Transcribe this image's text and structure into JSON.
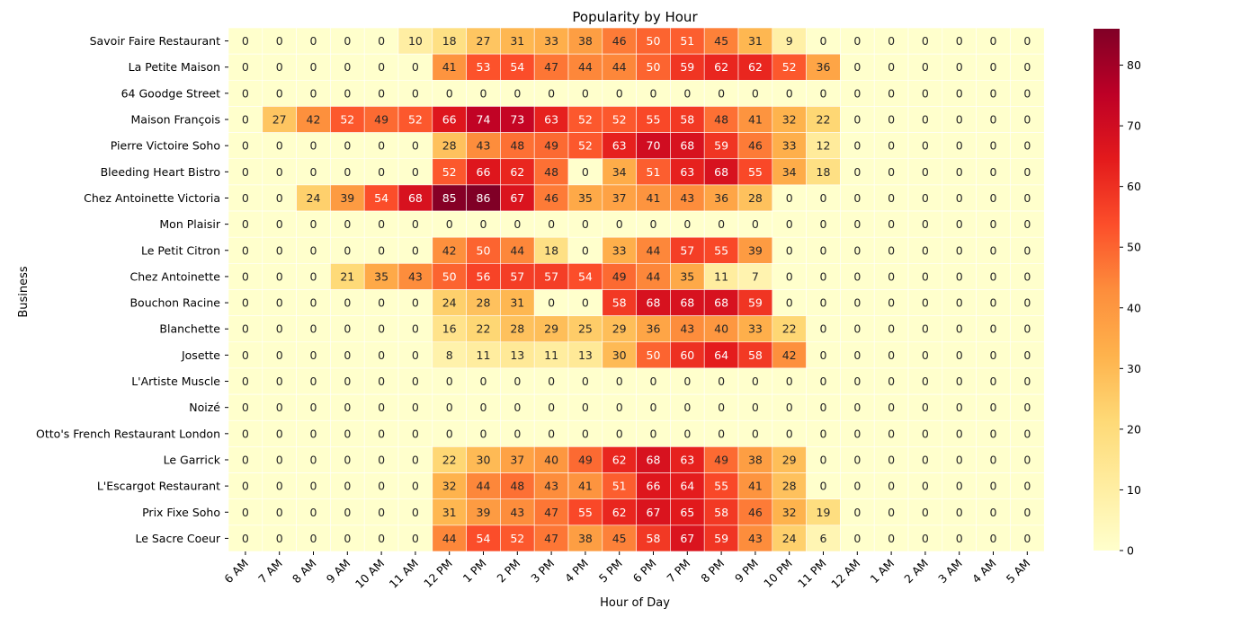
{
  "chart_data": {
    "type": "heatmap",
    "title": "Popularity by Hour",
    "xlabel": "Hour of Day",
    "ylabel": "Business",
    "x": [
      "6 AM",
      "7 AM",
      "8 AM",
      "9 AM",
      "10 AM",
      "11 AM",
      "12 PM",
      "1 PM",
      "2 PM",
      "3 PM",
      "4 PM",
      "5 PM",
      "6 PM",
      "7 PM",
      "8 PM",
      "9 PM",
      "10 PM",
      "11 PM",
      "12 AM",
      "1 AM",
      "2 AM",
      "3 AM",
      "4 AM",
      "5 AM"
    ],
    "y": [
      "Savoir Faire Restaurant",
      "La Petite Maison",
      "64 Goodge Street",
      "Maison François",
      "Pierre Victoire Soho",
      "Bleeding Heart Bistro",
      "Chez Antoinette Victoria",
      "Mon Plaisir",
      "Le Petit Citron",
      "Chez Antoinette",
      "Bouchon Racine",
      "Blanchette",
      "Josette",
      "L'Artiste Muscle",
      "Noizé",
      "Otto's French Restaurant London",
      "Le Garrick",
      "L'Escargot Restaurant",
      "Prix Fixe Soho",
      "Le Sacre Coeur"
    ],
    "values": [
      [
        0,
        0,
        0,
        0,
        0,
        10,
        18,
        27,
        31,
        33,
        38,
        46,
        50,
        51,
        45,
        31,
        9,
        0,
        0,
        0,
        0,
        0,
        0,
        0
      ],
      [
        0,
        0,
        0,
        0,
        0,
        0,
        41,
        53,
        54,
        47,
        44,
        44,
        50,
        59,
        62,
        62,
        52,
        36,
        0,
        0,
        0,
        0,
        0,
        0
      ],
      [
        0,
        0,
        0,
        0,
        0,
        0,
        0,
        0,
        0,
        0,
        0,
        0,
        0,
        0,
        0,
        0,
        0,
        0,
        0,
        0,
        0,
        0,
        0,
        0
      ],
      [
        0,
        27,
        42,
        52,
        49,
        52,
        66,
        74,
        73,
        63,
        52,
        52,
        55,
        58,
        48,
        41,
        32,
        22,
        0,
        0,
        0,
        0,
        0,
        0
      ],
      [
        0,
        0,
        0,
        0,
        0,
        0,
        28,
        43,
        48,
        49,
        52,
        63,
        70,
        68,
        59,
        46,
        33,
        12,
        0,
        0,
        0,
        0,
        0,
        0
      ],
      [
        0,
        0,
        0,
        0,
        0,
        0,
        52,
        66,
        62,
        48,
        0,
        34,
        51,
        63,
        68,
        55,
        34,
        18,
        0,
        0,
        0,
        0,
        0,
        0
      ],
      [
        0,
        0,
        24,
        39,
        54,
        68,
        85,
        86,
        67,
        46,
        35,
        37,
        41,
        43,
        36,
        28,
        0,
        0,
        0,
        0,
        0,
        0,
        0,
        0
      ],
      [
        0,
        0,
        0,
        0,
        0,
        0,
        0,
        0,
        0,
        0,
        0,
        0,
        0,
        0,
        0,
        0,
        0,
        0,
        0,
        0,
        0,
        0,
        0,
        0
      ],
      [
        0,
        0,
        0,
        0,
        0,
        0,
        42,
        50,
        44,
        18,
        0,
        33,
        44,
        57,
        55,
        39,
        0,
        0,
        0,
        0,
        0,
        0,
        0,
        0
      ],
      [
        0,
        0,
        0,
        21,
        35,
        43,
        50,
        56,
        57,
        57,
        54,
        49,
        44,
        35,
        11,
        7,
        0,
        0,
        0,
        0,
        0,
        0,
        0,
        0
      ],
      [
        0,
        0,
        0,
        0,
        0,
        0,
        24,
        28,
        31,
        0,
        0,
        58,
        68,
        68,
        68,
        59,
        0,
        0,
        0,
        0,
        0,
        0,
        0,
        0
      ],
      [
        0,
        0,
        0,
        0,
        0,
        0,
        16,
        22,
        28,
        29,
        25,
        29,
        36,
        43,
        40,
        33,
        22,
        0,
        0,
        0,
        0,
        0,
        0,
        0
      ],
      [
        0,
        0,
        0,
        0,
        0,
        0,
        8,
        11,
        13,
        11,
        13,
        30,
        50,
        60,
        64,
        58,
        42,
        0,
        0,
        0,
        0,
        0,
        0,
        0
      ],
      [
        0,
        0,
        0,
        0,
        0,
        0,
        0,
        0,
        0,
        0,
        0,
        0,
        0,
        0,
        0,
        0,
        0,
        0,
        0,
        0,
        0,
        0,
        0,
        0
      ],
      [
        0,
        0,
        0,
        0,
        0,
        0,
        0,
        0,
        0,
        0,
        0,
        0,
        0,
        0,
        0,
        0,
        0,
        0,
        0,
        0,
        0,
        0,
        0,
        0
      ],
      [
        0,
        0,
        0,
        0,
        0,
        0,
        0,
        0,
        0,
        0,
        0,
        0,
        0,
        0,
        0,
        0,
        0,
        0,
        0,
        0,
        0,
        0,
        0,
        0
      ],
      [
        0,
        0,
        0,
        0,
        0,
        0,
        22,
        30,
        37,
        40,
        49,
        62,
        68,
        63,
        49,
        38,
        29,
        0,
        0,
        0,
        0,
        0,
        0,
        0
      ],
      [
        0,
        0,
        0,
        0,
        0,
        0,
        32,
        44,
        48,
        43,
        41,
        51,
        66,
        64,
        55,
        41,
        28,
        0,
        0,
        0,
        0,
        0,
        0,
        0
      ],
      [
        0,
        0,
        0,
        0,
        0,
        0,
        31,
        39,
        43,
        47,
        55,
        62,
        67,
        65,
        58,
        46,
        32,
        19,
        0,
        0,
        0,
        0,
        0,
        0
      ],
      [
        0,
        0,
        0,
        0,
        0,
        0,
        44,
        54,
        52,
        47,
        38,
        45,
        58,
        67,
        59,
        43,
        24,
        6,
        0,
        0,
        0,
        0,
        0,
        0
      ]
    ],
    "colorbar": {
      "min": 0,
      "max": 86,
      "ticks": [
        0,
        10,
        20,
        30,
        40,
        50,
        60,
        70,
        80
      ],
      "colormap": "YlOrRd"
    },
    "annotated": true,
    "grid": false,
    "legend": "colorbar-right"
  }
}
